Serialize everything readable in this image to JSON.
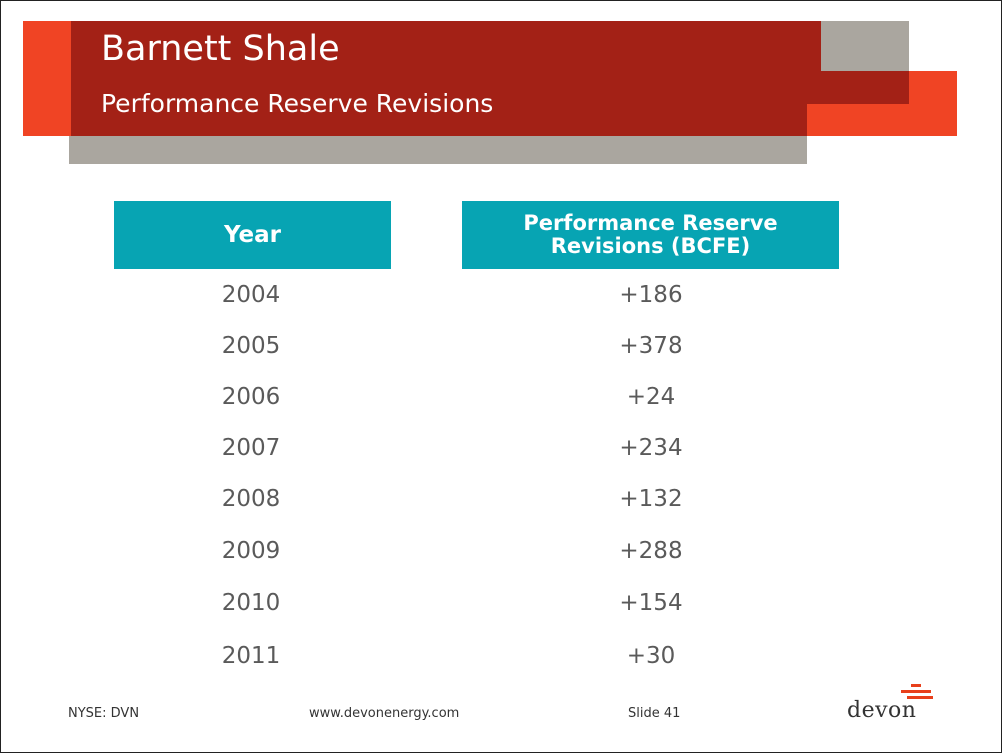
{
  "header": {
    "title": "Barnett Shale",
    "subtitle": "Performance Reserve Revisions"
  },
  "table": {
    "columns": [
      "Year",
      "Performance Reserve Revisions (BCFE)"
    ],
    "column_lines": [
      [
        "Year"
      ],
      [
        "Performance Reserve",
        "Revisions (BCFE)"
      ]
    ],
    "rows": [
      [
        "2004",
        "+186"
      ],
      [
        "2005",
        "+378"
      ],
      [
        "2006",
        "+24"
      ],
      [
        "2007",
        "+234"
      ],
      [
        "2008",
        "+132"
      ],
      [
        "2009",
        "+288"
      ],
      [
        "2010",
        "+154"
      ],
      [
        "2011",
        "+30"
      ]
    ]
  },
  "footer": {
    "ticker": "NYSE: DVN",
    "website": "www.devonenergy.com",
    "slide": "Slide 41"
  },
  "logo": {
    "text": "devon"
  },
  "colors": {
    "title_red": "#a32116",
    "accent_orange": "#f04424",
    "gray": "#aaa69f",
    "header_teal": "#07a4b3",
    "cell_text": "#5a5a5a"
  }
}
